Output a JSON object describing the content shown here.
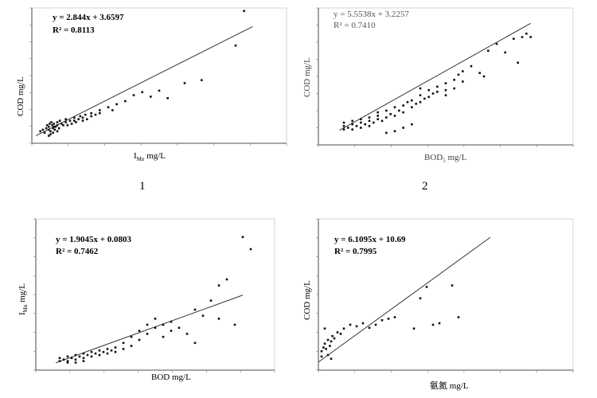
{
  "chart_data": [
    {
      "type": "scatter",
      "panel_number": "1",
      "equation": "y = 2.844x + 3.6597",
      "r2_text": "R² = 0.8113",
      "xlabel": "I",
      "xlabel_sub": "Mn",
      "xlabel_unit": " mg/L",
      "ylabel": "COD  mg/L",
      "xlim": [
        0,
        30
      ],
      "ylim": [
        0,
        90
      ],
      "trendline": {
        "slope": 2.844,
        "intercept": 3.6597,
        "x_range": [
          0.5,
          26
        ]
      },
      "points": [
        [
          1,
          8
        ],
        [
          1.3,
          9
        ],
        [
          1.5,
          7
        ],
        [
          1.7,
          10
        ],
        [
          2,
          9
        ],
        [
          2,
          11
        ],
        [
          2.2,
          8
        ],
        [
          2.4,
          12
        ],
        [
          2.5,
          10
        ],
        [
          2.6,
          13
        ],
        [
          2.7,
          9
        ],
        [
          2.8,
          11
        ],
        [
          3,
          12
        ],
        [
          3,
          14
        ],
        [
          3.2,
          10
        ],
        [
          3.3,
          15
        ],
        [
          3.5,
          13
        ],
        [
          3.7,
          12
        ],
        [
          4,
          14
        ],
        [
          4,
          16
        ],
        [
          4.2,
          12
        ],
        [
          4.5,
          15
        ],
        [
          4.7,
          13
        ],
        [
          5,
          17
        ],
        [
          5,
          15
        ],
        [
          5.2,
          14
        ],
        [
          5.5,
          16
        ],
        [
          5.7,
          18
        ],
        [
          6,
          15
        ],
        [
          6,
          17
        ],
        [
          6.3,
          19
        ],
        [
          6.5,
          16
        ],
        [
          7,
          18
        ],
        [
          7,
          20
        ],
        [
          7.5,
          19
        ],
        [
          8,
          22
        ],
        [
          8,
          20
        ],
        [
          9,
          24
        ],
        [
          9.5,
          22
        ],
        [
          10,
          26
        ],
        [
          11,
          28
        ],
        [
          12,
          32
        ],
        [
          13,
          34
        ],
        [
          14,
          31
        ],
        [
          15,
          35
        ],
        [
          16,
          30
        ],
        [
          18,
          40
        ],
        [
          20,
          42
        ],
        [
          24,
          65
        ],
        [
          25,
          88
        ],
        [
          2,
          5
        ],
        [
          2.2,
          6
        ],
        [
          2.5,
          7
        ],
        [
          3,
          8
        ],
        [
          1.8,
          12
        ],
        [
          2.1,
          13
        ],
        [
          2.3,
          14
        ],
        [
          2.6,
          11
        ]
      ]
    },
    {
      "type": "scatter",
      "panel_number": "2",
      "equation": "y = 5.5538x + 3.2257",
      "r2_text": "R² = 0.7410",
      "xlabel": "BOD",
      "xlabel_sub": "5",
      "xlabel_unit": " mg/L",
      "ylabel": "COD  mg/L",
      "xlim": [
        0,
        30
      ],
      "ylim": [
        0,
        160
      ],
      "trendline": {
        "slope": 5.5538,
        "intercept": 3.2257,
        "x_range": [
          2.5,
          25
        ]
      },
      "points": [
        [
          3,
          18
        ],
        [
          3,
          22
        ],
        [
          3,
          26
        ],
        [
          3.5,
          20
        ],
        [
          4,
          18
        ],
        [
          4,
          24
        ],
        [
          4,
          28
        ],
        [
          4.5,
          22
        ],
        [
          5,
          20
        ],
        [
          5,
          26
        ],
        [
          5,
          30
        ],
        [
          5.5,
          24
        ],
        [
          6,
          22
        ],
        [
          6,
          28
        ],
        [
          6,
          32
        ],
        [
          6.5,
          26
        ],
        [
          7,
          30
        ],
        [
          7,
          34
        ],
        [
          7,
          38
        ],
        [
          7.5,
          28
        ],
        [
          8,
          32
        ],
        [
          8,
          40
        ],
        [
          8.5,
          36
        ],
        [
          9,
          34
        ],
        [
          9,
          44
        ],
        [
          9.5,
          40
        ],
        [
          10,
          38
        ],
        [
          10,
          46
        ],
        [
          10.5,
          50
        ],
        [
          11,
          44
        ],
        [
          11,
          52
        ],
        [
          11.5,
          48
        ],
        [
          12,
          50
        ],
        [
          12,
          58
        ],
        [
          12,
          66
        ],
        [
          12.5,
          54
        ],
        [
          13,
          56
        ],
        [
          13,
          64
        ],
        [
          13.5,
          60
        ],
        [
          14,
          62
        ],
        [
          14,
          68
        ],
        [
          15,
          58
        ],
        [
          15,
          64
        ],
        [
          15,
          72
        ],
        [
          16,
          66
        ],
        [
          16,
          76
        ],
        [
          16.5,
          82
        ],
        [
          17,
          74
        ],
        [
          17,
          86
        ],
        [
          18,
          92
        ],
        [
          19,
          84
        ],
        [
          20,
          110
        ],
        [
          21,
          118
        ],
        [
          22,
          108
        ],
        [
          23,
          124
        ],
        [
          24,
          126
        ],
        [
          24.5,
          130
        ],
        [
          25,
          126
        ],
        [
          23.5,
          96
        ],
        [
          19.5,
          80
        ],
        [
          9,
          16
        ],
        [
          10,
          20
        ],
        [
          11,
          24
        ],
        [
          8,
          14
        ]
      ]
    },
    {
      "type": "scatter",
      "equation": "y = 1.9045x + 0.0803",
      "r2_text": "R² = 0.7462",
      "xlabel": "BOD mg/L",
      "ylabel": "I",
      "ylabel_sub": "Mn",
      "ylabel_unit": " mg/L",
      "xlim": [
        0,
        30
      ],
      "ylim": [
        0,
        100
      ],
      "trendline": {
        "slope": 1.9045,
        "intercept": 0.0803,
        "x_range": [
          2.5,
          26
        ]
      },
      "points": [
        [
          3,
          6
        ],
        [
          3,
          8
        ],
        [
          3.5,
          7
        ],
        [
          4,
          6
        ],
        [
          4,
          9
        ],
        [
          4.5,
          8
        ],
        [
          5,
          7
        ],
        [
          5,
          10
        ],
        [
          5.5,
          9
        ],
        [
          6,
          8
        ],
        [
          6,
          11
        ],
        [
          6.5,
          10
        ],
        [
          7,
          9
        ],
        [
          7,
          12
        ],
        [
          7.5,
          11
        ],
        [
          8,
          10
        ],
        [
          8,
          13
        ],
        [
          8.5,
          12
        ],
        [
          9,
          11
        ],
        [
          9,
          14
        ],
        [
          9.5,
          13
        ],
        [
          10,
          12
        ],
        [
          10,
          15
        ],
        [
          11,
          14
        ],
        [
          11,
          18
        ],
        [
          12,
          16
        ],
        [
          12,
          22
        ],
        [
          13,
          20
        ],
        [
          13,
          26
        ],
        [
          14,
          24
        ],
        [
          14,
          30
        ],
        [
          15,
          28
        ],
        [
          15,
          34
        ],
        [
          16,
          22
        ],
        [
          16,
          30
        ],
        [
          17,
          26
        ],
        [
          17,
          32
        ],
        [
          18,
          28
        ],
        [
          19,
          24
        ],
        [
          20,
          40
        ],
        [
          20,
          18
        ],
        [
          21,
          36
        ],
        [
          22,
          46
        ],
        [
          23,
          56
        ],
        [
          24,
          60
        ],
        [
          23,
          34
        ],
        [
          25,
          30
        ],
        [
          26,
          88
        ],
        [
          27,
          80
        ],
        [
          4,
          5
        ],
        [
          5,
          5
        ],
        [
          6,
          6
        ]
      ]
    },
    {
      "type": "scatter",
      "equation": "y = 6.1095x + 10.69",
      "r2_text": "R² = 0.7995",
      "xlabel": "氨氮 mg/L",
      "ylabel": "COD mg/L",
      "xlim": [
        0,
        40
      ],
      "ylim": [
        0,
        200
      ],
      "trendline": {
        "slope": 6.1095,
        "intercept": 10.69,
        "x_range": [
          0,
          27
        ]
      },
      "points": [
        [
          0.5,
          25
        ],
        [
          0.8,
          30
        ],
        [
          1,
          35
        ],
        [
          1.2,
          28
        ],
        [
          1.5,
          40
        ],
        [
          1.8,
          32
        ],
        [
          2,
          38
        ],
        [
          2.2,
          45
        ],
        [
          2.5,
          42
        ],
        [
          3,
          50
        ],
        [
          3.5,
          48
        ],
        [
          4,
          55
        ],
        [
          5,
          60
        ],
        [
          6,
          58
        ],
        [
          7,
          62
        ],
        [
          8,
          56
        ],
        [
          9,
          60
        ],
        [
          10,
          66
        ],
        [
          11,
          68
        ],
        [
          12,
          70
        ],
        [
          15,
          55
        ],
        [
          16,
          95
        ],
        [
          17,
          110
        ],
        [
          18,
          60
        ],
        [
          19,
          62
        ],
        [
          21,
          112
        ],
        [
          22,
          70
        ],
        [
          1,
          55
        ],
        [
          1.5,
          20
        ],
        [
          2,
          15
        ],
        [
          0.5,
          18
        ]
      ]
    }
  ]
}
